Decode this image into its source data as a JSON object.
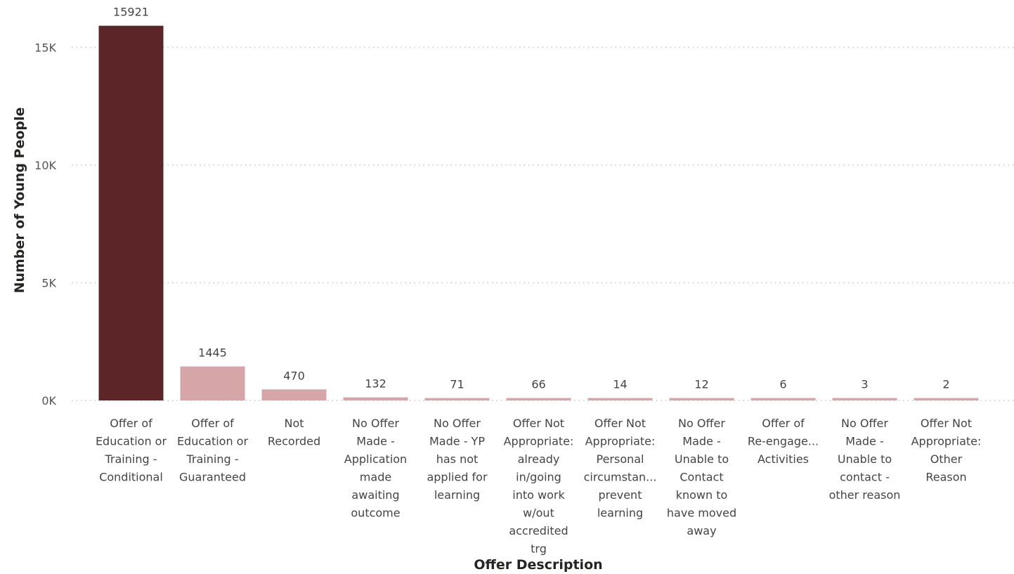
{
  "chart_data": {
    "type": "bar",
    "xlabel": "Offer Description",
    "ylabel": "Number of Young People",
    "ylim": [
      0,
      16000
    ],
    "yticks": [
      {
        "value": 0,
        "label": "0K"
      },
      {
        "value": 5000,
        "label": "5K"
      },
      {
        "value": 10000,
        "label": "10K"
      },
      {
        "value": 15000,
        "label": "15K"
      }
    ],
    "grid": true,
    "highlight_color": "#5c2528",
    "bar_color": "#d6a5a8",
    "categories": [
      {
        "label_lines": [
          "Offer of",
          "Education or",
          "Training -",
          "Conditional"
        ],
        "value": 15921,
        "value_label": "15921",
        "highlighted": true
      },
      {
        "label_lines": [
          "Offer of",
          "Education or",
          "Training -",
          "Guaranteed"
        ],
        "value": 1445,
        "value_label": "1445",
        "highlighted": false
      },
      {
        "label_lines": [
          "Not",
          "Recorded"
        ],
        "value": 470,
        "value_label": "470",
        "highlighted": false
      },
      {
        "label_lines": [
          "No Offer",
          "Made -",
          "Application",
          "made",
          "awaiting",
          "outcome"
        ],
        "value": 132,
        "value_label": "132",
        "highlighted": false
      },
      {
        "label_lines": [
          "No Offer",
          "Made - YP",
          "has not",
          "applied for",
          "learning"
        ],
        "value": 71,
        "value_label": "71",
        "highlighted": false
      },
      {
        "label_lines": [
          "Offer Not",
          "Appropriate:",
          "already",
          "in/going",
          "into work",
          "w/out",
          "accredited",
          "trg"
        ],
        "value": 66,
        "value_label": "66",
        "highlighted": false
      },
      {
        "label_lines": [
          "Offer Not",
          "Appropriate:",
          "Personal",
          "circumstan...",
          "prevent",
          "learning"
        ],
        "value": 14,
        "value_label": "14",
        "highlighted": false
      },
      {
        "label_lines": [
          "No Offer",
          "Made -",
          "Unable to",
          "Contact",
          "known to",
          "have moved",
          "away"
        ],
        "value": 12,
        "value_label": "12",
        "highlighted": false
      },
      {
        "label_lines": [
          "Offer of",
          "Re-engage...",
          "Activities"
        ],
        "value": 6,
        "value_label": "6",
        "highlighted": false
      },
      {
        "label_lines": [
          "No Offer",
          "Made -",
          "Unable to",
          "contact -",
          "other reason"
        ],
        "value": 3,
        "value_label": "3",
        "highlighted": false
      },
      {
        "label_lines": [
          "Offer Not",
          "Appropriate:",
          "Other",
          "Reason"
        ],
        "value": 2,
        "value_label": "2",
        "highlighted": false
      }
    ]
  }
}
